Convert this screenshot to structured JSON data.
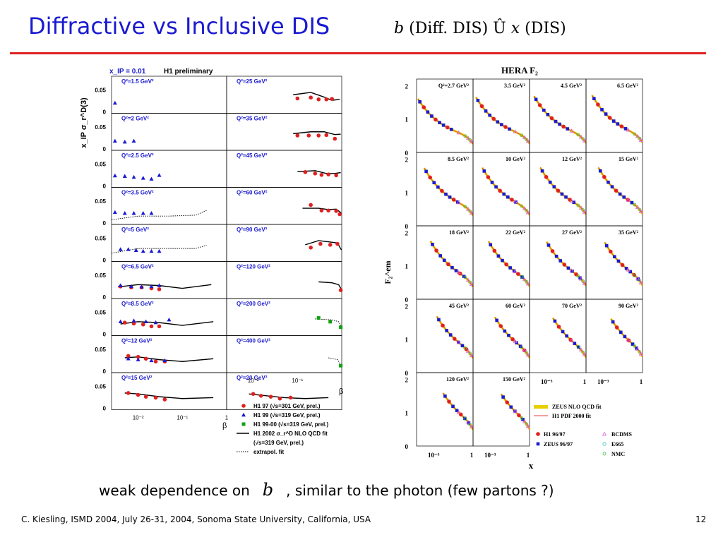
{
  "slide": {
    "title": "Diffractive vs Inclusive DIS",
    "subtitle_b": "b",
    "subtitle_mid": "(Diff. DIS) Û",
    "subtitle_x": "x",
    "subtitle_end": "(DIS)",
    "note_pre": "weak dependence on",
    "note_b": "b",
    "note_post": ", similar to the photon (few partons ?)",
    "footer": "C. Kiesling, ISMD 2004, July 26-31, 2004, Sonoma State University, California, USA",
    "page_number": "12"
  },
  "colors": {
    "title": "#1a1ad0",
    "rule": "#e02020",
    "h1_97": "#e02020",
    "h1_99": "#1a1ad0",
    "h1_9900": "#10a010",
    "zeus": "#1a1ad0",
    "fit_band": "#e8d000",
    "fit_line": "#e04040"
  },
  "chart_data": [
    {
      "type": "scatter",
      "id": "left",
      "header_xip": "x_IP = 0.01",
      "header_label": "H1 preliminary",
      "ylabel": "x_IP σ_r^D(3)",
      "xlabel": "β",
      "yticks": [
        "0.05",
        "0"
      ],
      "xticks_left": [
        "10⁻²",
        "10⁻¹",
        "1"
      ],
      "xticks_right": [
        "10⁻²",
        "10⁻¹"
      ],
      "ylim": [
        0,
        0.08
      ],
      "xlim_log": [
        -2.6,
        0
      ],
      "panels": [
        {
          "label": "Q²=1.5 GeV²",
          "points": [
            {
              "s": "h1_99",
              "x": 0.003,
              "y": 0.022
            }
          ]
        },
        {
          "label": "Q²=25 GeV²",
          "points": [
            {
              "s": "h1_97",
              "x": 0.1,
              "y": 0.032
            },
            {
              "s": "h1_97",
              "x": 0.2,
              "y": 0.034
            },
            {
              "s": "h1_97",
              "x": 0.3,
              "y": 0.03
            },
            {
              "s": "h1_97",
              "x": 0.45,
              "y": 0.03
            },
            {
              "s": "h1_97",
              "x": 0.6,
              "y": 0.031
            }
          ],
          "fit": [
            [
              0.08,
              0.04
            ],
            [
              0.2,
              0.045
            ],
            [
              0.4,
              0.035
            ],
            [
              0.6,
              0.028
            ],
            [
              0.9,
              0.03
            ]
          ]
        },
        {
          "label": "Q²=2 GeV²",
          "points": [
            {
              "s": "h1_99",
              "x": 0.003,
              "y": 0.02
            },
            {
              "s": "h1_99",
              "x": 0.005,
              "y": 0.018
            },
            {
              "s": "h1_99",
              "x": 0.008,
              "y": 0.02
            }
          ]
        },
        {
          "label": "Q²=35 GeV²",
          "points": [
            {
              "s": "h1_97",
              "x": 0.1,
              "y": 0.032
            },
            {
              "s": "h1_97",
              "x": 0.18,
              "y": 0.032
            },
            {
              "s": "h1_97",
              "x": 0.3,
              "y": 0.032
            },
            {
              "s": "h1_97",
              "x": 0.45,
              "y": 0.033
            },
            {
              "s": "h1_97",
              "x": 0.7,
              "y": 0.025
            }
          ],
          "fit": [
            [
              0.08,
              0.036
            ],
            [
              0.2,
              0.04
            ],
            [
              0.4,
              0.04
            ],
            [
              0.7,
              0.034
            ],
            [
              0.95,
              0.035
            ]
          ]
        },
        {
          "label": "Q²=2.5 GeV²",
          "points": [
            {
              "s": "h1_99",
              "x": 0.003,
              "y": 0.025
            },
            {
              "s": "h1_99",
              "x": 0.005,
              "y": 0.024
            },
            {
              "s": "h1_99",
              "x": 0.008,
              "y": 0.022
            },
            {
              "s": "h1_99",
              "x": 0.013,
              "y": 0.02
            },
            {
              "s": "h1_99",
              "x": 0.02,
              "y": 0.018
            },
            {
              "s": "h1_99",
              "x": 0.03,
              "y": 0.026
            }
          ]
        },
        {
          "label": "Q²=45 GeV²",
          "points": [
            {
              "s": "h1_97",
              "x": 0.15,
              "y": 0.033
            },
            {
              "s": "h1_97",
              "x": 0.25,
              "y": 0.03
            },
            {
              "s": "h1_97",
              "x": 0.35,
              "y": 0.027
            },
            {
              "s": "h1_97",
              "x": 0.5,
              "y": 0.028
            },
            {
              "s": "h1_97",
              "x": 0.75,
              "y": 0.026
            }
          ],
          "fit": [
            [
              0.1,
              0.034
            ],
            [
              0.25,
              0.036
            ],
            [
              0.45,
              0.03
            ],
            [
              0.7,
              0.03
            ],
            [
              0.95,
              0.032
            ]
          ]
        },
        {
          "label": "Q²=3.5 GeV²",
          "points": [
            {
              "s": "h1_99",
              "x": 0.003,
              "y": 0.026
            },
            {
              "s": "h1_99",
              "x": 0.005,
              "y": 0.024
            },
            {
              "s": "h1_99",
              "x": 0.008,
              "y": 0.024
            },
            {
              "s": "h1_99",
              "x": 0.013,
              "y": 0.024
            },
            {
              "s": "h1_99",
              "x": 0.02,
              "y": 0.024
            }
          ],
          "extrap": [
            [
              0.0025,
              0.01
            ],
            [
              0.01,
              0.018
            ],
            [
              0.05,
              0.018
            ],
            [
              0.2,
              0.02
            ],
            [
              0.35,
              0.03
            ]
          ]
        },
        {
          "label": "Q²=60 GeV²",
          "points": [
            {
              "s": "h1_97",
              "x": 0.2,
              "y": 0.042
            },
            {
              "s": "h1_97",
              "x": 0.35,
              "y": 0.03
            },
            {
              "s": "h1_97",
              "x": 0.5,
              "y": 0.03
            },
            {
              "s": "h1_97",
              "x": 0.75,
              "y": 0.029
            },
            {
              "s": "h1_97",
              "x": 0.9,
              "y": 0.022
            }
          ],
          "fit": [
            [
              0.13,
              0.035
            ],
            [
              0.3,
              0.035
            ],
            [
              0.5,
              0.032
            ],
            [
              0.75,
              0.033
            ],
            [
              0.97,
              0.025
            ]
          ]
        },
        {
          "label": "Q²=5 GeV²",
          "points": [
            {
              "s": "h1_99",
              "x": 0.004,
              "y": 0.026
            },
            {
              "s": "h1_99",
              "x": 0.006,
              "y": 0.026
            },
            {
              "s": "h1_99",
              "x": 0.009,
              "y": 0.024
            },
            {
              "s": "h1_99",
              "x": 0.013,
              "y": 0.022
            },
            {
              "s": "h1_99",
              "x": 0.02,
              "y": 0.022
            },
            {
              "s": "h1_99",
              "x": 0.03,
              "y": 0.022
            }
          ],
          "extrap": [
            [
              0.0025,
              0.018
            ],
            [
              0.01,
              0.028
            ],
            [
              0.05,
              0.028
            ],
            [
              0.2,
              0.028
            ],
            [
              0.35,
              0.035
            ]
          ]
        },
        {
          "label": "Q²=90 GeV²",
          "points": [
            {
              "s": "h1_97",
              "x": 0.2,
              "y": 0.03
            },
            {
              "s": "h1_97",
              "x": 0.33,
              "y": 0.038
            },
            {
              "s": "h1_97",
              "x": 0.55,
              "y": 0.036
            },
            {
              "s": "h1_97",
              "x": 0.8,
              "y": 0.038
            }
          ],
          "fit": [
            [
              0.15,
              0.036
            ],
            [
              0.3,
              0.045
            ],
            [
              0.55,
              0.042
            ],
            [
              0.8,
              0.04
            ],
            [
              0.98,
              0.025
            ]
          ]
        },
        {
          "label": "Q²=6.5 GeV²",
          "points": [
            {
              "s": "h1_97",
              "x": 0.004,
              "y": 0.026
            },
            {
              "s": "h1_97",
              "x": 0.007,
              "y": 0.024
            },
            {
              "s": "h1_97",
              "x": 0.012,
              "y": 0.024
            },
            {
              "s": "h1_97",
              "x": 0.02,
              "y": 0.022
            },
            {
              "s": "h1_97",
              "x": 0.03,
              "y": 0.02
            },
            {
              "s": "h1_99",
              "x": 0.004,
              "y": 0.028
            },
            {
              "s": "h1_99",
              "x": 0.007,
              "y": 0.026
            },
            {
              "s": "h1_99",
              "x": 0.012,
              "y": 0.025
            },
            {
              "s": "h1_99",
              "x": 0.02,
              "y": 0.026
            },
            {
              "s": "h1_99",
              "x": 0.03,
              "y": 0.028
            }
          ],
          "fit": [
            [
              0.0035,
              0.025
            ],
            [
              0.01,
              0.03
            ],
            [
              0.03,
              0.028
            ],
            [
              0.1,
              0.022
            ],
            [
              0.45,
              0.03
            ]
          ]
        },
        {
          "label": "Q²=120 GeV²",
          "points": [
            {
              "s": "h1_97",
              "x": 0.95,
              "y": 0.018
            }
          ],
          "fit": [
            [
              0.3,
              0.036
            ],
            [
              0.6,
              0.034
            ],
            [
              0.85,
              0.03
            ],
            [
              0.98,
              0.02
            ]
          ]
        },
        {
          "label": "Q²=8.5 GeV²",
          "points": [
            {
              "s": "h1_97",
              "x": 0.005,
              "y": 0.028
            },
            {
              "s": "h1_97",
              "x": 0.008,
              "y": 0.026
            },
            {
              "s": "h1_97",
              "x": 0.013,
              "y": 0.024
            },
            {
              "s": "h1_97",
              "x": 0.02,
              "y": 0.02
            },
            {
              "s": "h1_97",
              "x": 0.03,
              "y": 0.02
            },
            {
              "s": "h1_99",
              "x": 0.004,
              "y": 0.03
            },
            {
              "s": "h1_99",
              "x": 0.008,
              "y": 0.032
            },
            {
              "s": "h1_99",
              "x": 0.015,
              "y": 0.03
            },
            {
              "s": "h1_99",
              "x": 0.025,
              "y": 0.028
            },
            {
              "s": "h1_99",
              "x": 0.05,
              "y": 0.034
            }
          ],
          "fit": [
            [
              0.004,
              0.025
            ],
            [
              0.01,
              0.03
            ],
            [
              0.03,
              0.028
            ],
            [
              0.1,
              0.022
            ],
            [
              0.5,
              0.03
            ]
          ]
        },
        {
          "label": "Q²=200 GeV²",
          "points": [
            {
              "s": "h1_9900",
              "x": 0.3,
              "y": 0.038
            },
            {
              "s": "h1_9900",
              "x": 0.55,
              "y": 0.03
            },
            {
              "s": "h1_9900",
              "x": 0.95,
              "y": 0.018
            }
          ],
          "extrap": [
            [
              0.25,
              0.036
            ],
            [
              0.6,
              0.034
            ],
            [
              0.85,
              0.03
            ],
            [
              0.98,
              0.02
            ]
          ]
        },
        {
          "label": "Q²=12 GeV²",
          "points": [
            {
              "s": "h1_97",
              "x": 0.006,
              "y": 0.036
            },
            {
              "s": "h1_97",
              "x": 0.01,
              "y": 0.034
            },
            {
              "s": "h1_97",
              "x": 0.015,
              "y": 0.03
            },
            {
              "s": "h1_97",
              "x": 0.025,
              "y": 0.024
            },
            {
              "s": "h1_97",
              "x": 0.04,
              "y": 0.024
            },
            {
              "s": "h1_99",
              "x": 0.006,
              "y": 0.03
            },
            {
              "s": "h1_99",
              "x": 0.01,
              "y": 0.028
            },
            {
              "s": "h1_99",
              "x": 0.02,
              "y": 0.026
            },
            {
              "s": "h1_99",
              "x": 0.04,
              "y": 0.026
            }
          ],
          "fit": [
            [
              0.005,
              0.032
            ],
            [
              0.01,
              0.034
            ],
            [
              0.03,
              0.028
            ],
            [
              0.1,
              0.024
            ],
            [
              0.5,
              0.03
            ]
          ]
        },
        {
          "label": "Q²=400 GeV²",
          "points": [
            {
              "s": "h1_9900",
              "x": 0.95,
              "y": 0.015
            }
          ],
          "extrap": [
            [
              0.5,
              0.032
            ],
            [
              0.8,
              0.028
            ],
            [
              0.98,
              0.015
            ]
          ]
        },
        {
          "label": "Q²=15 GeV²",
          "points": [
            {
              "s": "h1_97",
              "x": 0.006,
              "y": 0.036
            },
            {
              "s": "h1_97",
              "x": 0.01,
              "y": 0.032
            },
            {
              "s": "h1_97",
              "x": 0.015,
              "y": 0.028
            },
            {
              "s": "h1_97",
              "x": 0.025,
              "y": 0.026
            },
            {
              "s": "h1_97",
              "x": 0.04,
              "y": 0.022
            }
          ],
          "fit": [
            [
              0.005,
              0.036
            ],
            [
              0.01,
              0.034
            ],
            [
              0.03,
              0.028
            ],
            [
              0.1,
              0.024
            ],
            [
              0.5,
              0.026
            ]
          ]
        },
        {
          "label": "Q²=20 GeV²",
          "points": [
            {
              "s": "h1_97",
              "x": 0.01,
              "y": 0.034
            },
            {
              "s": "h1_97",
              "x": 0.015,
              "y": 0.03
            },
            {
              "s": "h1_97",
              "x": 0.025,
              "y": 0.028
            },
            {
              "s": "h1_97",
              "x": 0.04,
              "y": 0.024
            },
            {
              "s": "h1_97",
              "x": 0.07,
              "y": 0.026
            }
          ],
          "fit": [
            [
              0.008,
              0.034
            ],
            [
              0.02,
              0.03
            ],
            [
              0.05,
              0.026
            ],
            [
              0.15,
              0.024
            ],
            [
              0.5,
              0.026
            ]
          ]
        }
      ],
      "legend": [
        {
          "s": "h1_97",
          "label": "H1 97 (√s=301 GeV, prel.)"
        },
        {
          "s": "h1_99",
          "label": "H1 99 (√s=319 GeV, prel.)"
        },
        {
          "s": "h1_9900",
          "label": "H1 99-00 (√s=319 GeV, prel.)"
        },
        {
          "s": "fit",
          "label": "H1 2002 σ_r^D NLO QCD fit"
        },
        {
          "s": "none",
          "label": "(√s=319 GeV, prel.)"
        },
        {
          "s": "extrap",
          "label": "extrapol. fit"
        }
      ]
    },
    {
      "type": "scatter",
      "id": "right",
      "title": "HERA F₂",
      "ylabel": "F₂^em",
      "xlabel": "x",
      "yticks": [
        "2",
        "1",
        "0"
      ],
      "xticks": [
        "10⁻³",
        "1"
      ],
      "ylim": [
        0,
        2.2
      ],
      "xlim_log": [
        -4.3,
        0
      ],
      "panels": [
        "Q²=2.7 GeV²",
        "3.5 GeV²",
        "4.5 GeV²",
        "6.5 GeV²",
        "8.5 GeV²",
        "10 GeV²",
        "12 GeV²",
        "15 GeV²",
        "18 GeV²",
        "22 GeV²",
        "27 GeV²",
        "35 GeV²",
        "45 GeV²",
        "60 GeV²",
        "70 GeV²",
        "90 GeV²",
        "120 GeV²",
        "150 GeV²"
      ],
      "legend": [
        {
          "s": "band",
          "label": "ZEUS NLO QCD fit"
        },
        {
          "s": "line",
          "label": "H1 PDF 2000 fit"
        },
        {
          "s": "h1_9697",
          "label": "H1 96/97"
        },
        {
          "s": "zeus",
          "label": "ZEUS 96/97"
        },
        {
          "s": "bcdms",
          "label": "BCDMS"
        },
        {
          "s": "e665",
          "label": "E665"
        },
        {
          "s": "nmc",
          "label": "NMC"
        }
      ]
    }
  ]
}
